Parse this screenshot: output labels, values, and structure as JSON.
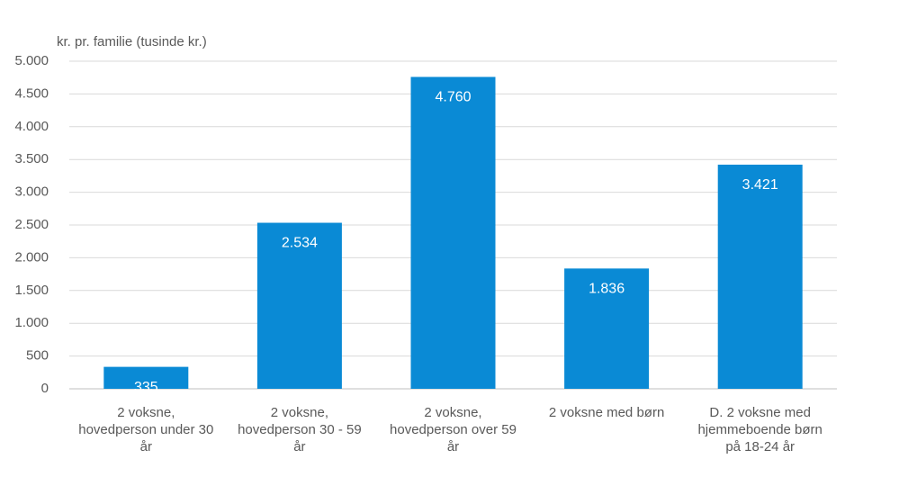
{
  "chart_data": {
    "type": "bar",
    "title": "kr. pr. familie  (tusinde kr.)",
    "categories": [
      "2 voksne,\nhovedperson under 30\når",
      "2 voksne,\nhovedperson 30 - 59\når",
      "2 voksne,\nhovedperson over 59\når",
      "2 voksne med børn",
      "D. 2 voksne med\nhjemmeboende børn\npå 18-24 år"
    ],
    "values": [
      335,
      2534,
      4760,
      1836,
      3421
    ],
    "value_labels": [
      "335",
      "2.534",
      "4.760",
      "1.836",
      "3.421"
    ],
    "color": "#0a8ad5",
    "ylim": [
      0,
      5000
    ],
    "yticks": [
      0,
      500,
      {
        "value": 1000,
        "label": "1.000"
      },
      {
        "value": 1500,
        "label": "1.500"
      },
      {
        "value": 2000,
        "label": "2.000"
      },
      {
        "value": 2500,
        "label": "2.500"
      },
      {
        "value": 3000,
        "label": "3.000"
      },
      {
        "value": 3500,
        "label": "3.500"
      },
      {
        "value": 4000,
        "label": "4.000"
      },
      {
        "value": 4500,
        "label": "4.500"
      },
      {
        "value": 5000,
        "label": "5.000"
      }
    ],
    "grid": true
  }
}
